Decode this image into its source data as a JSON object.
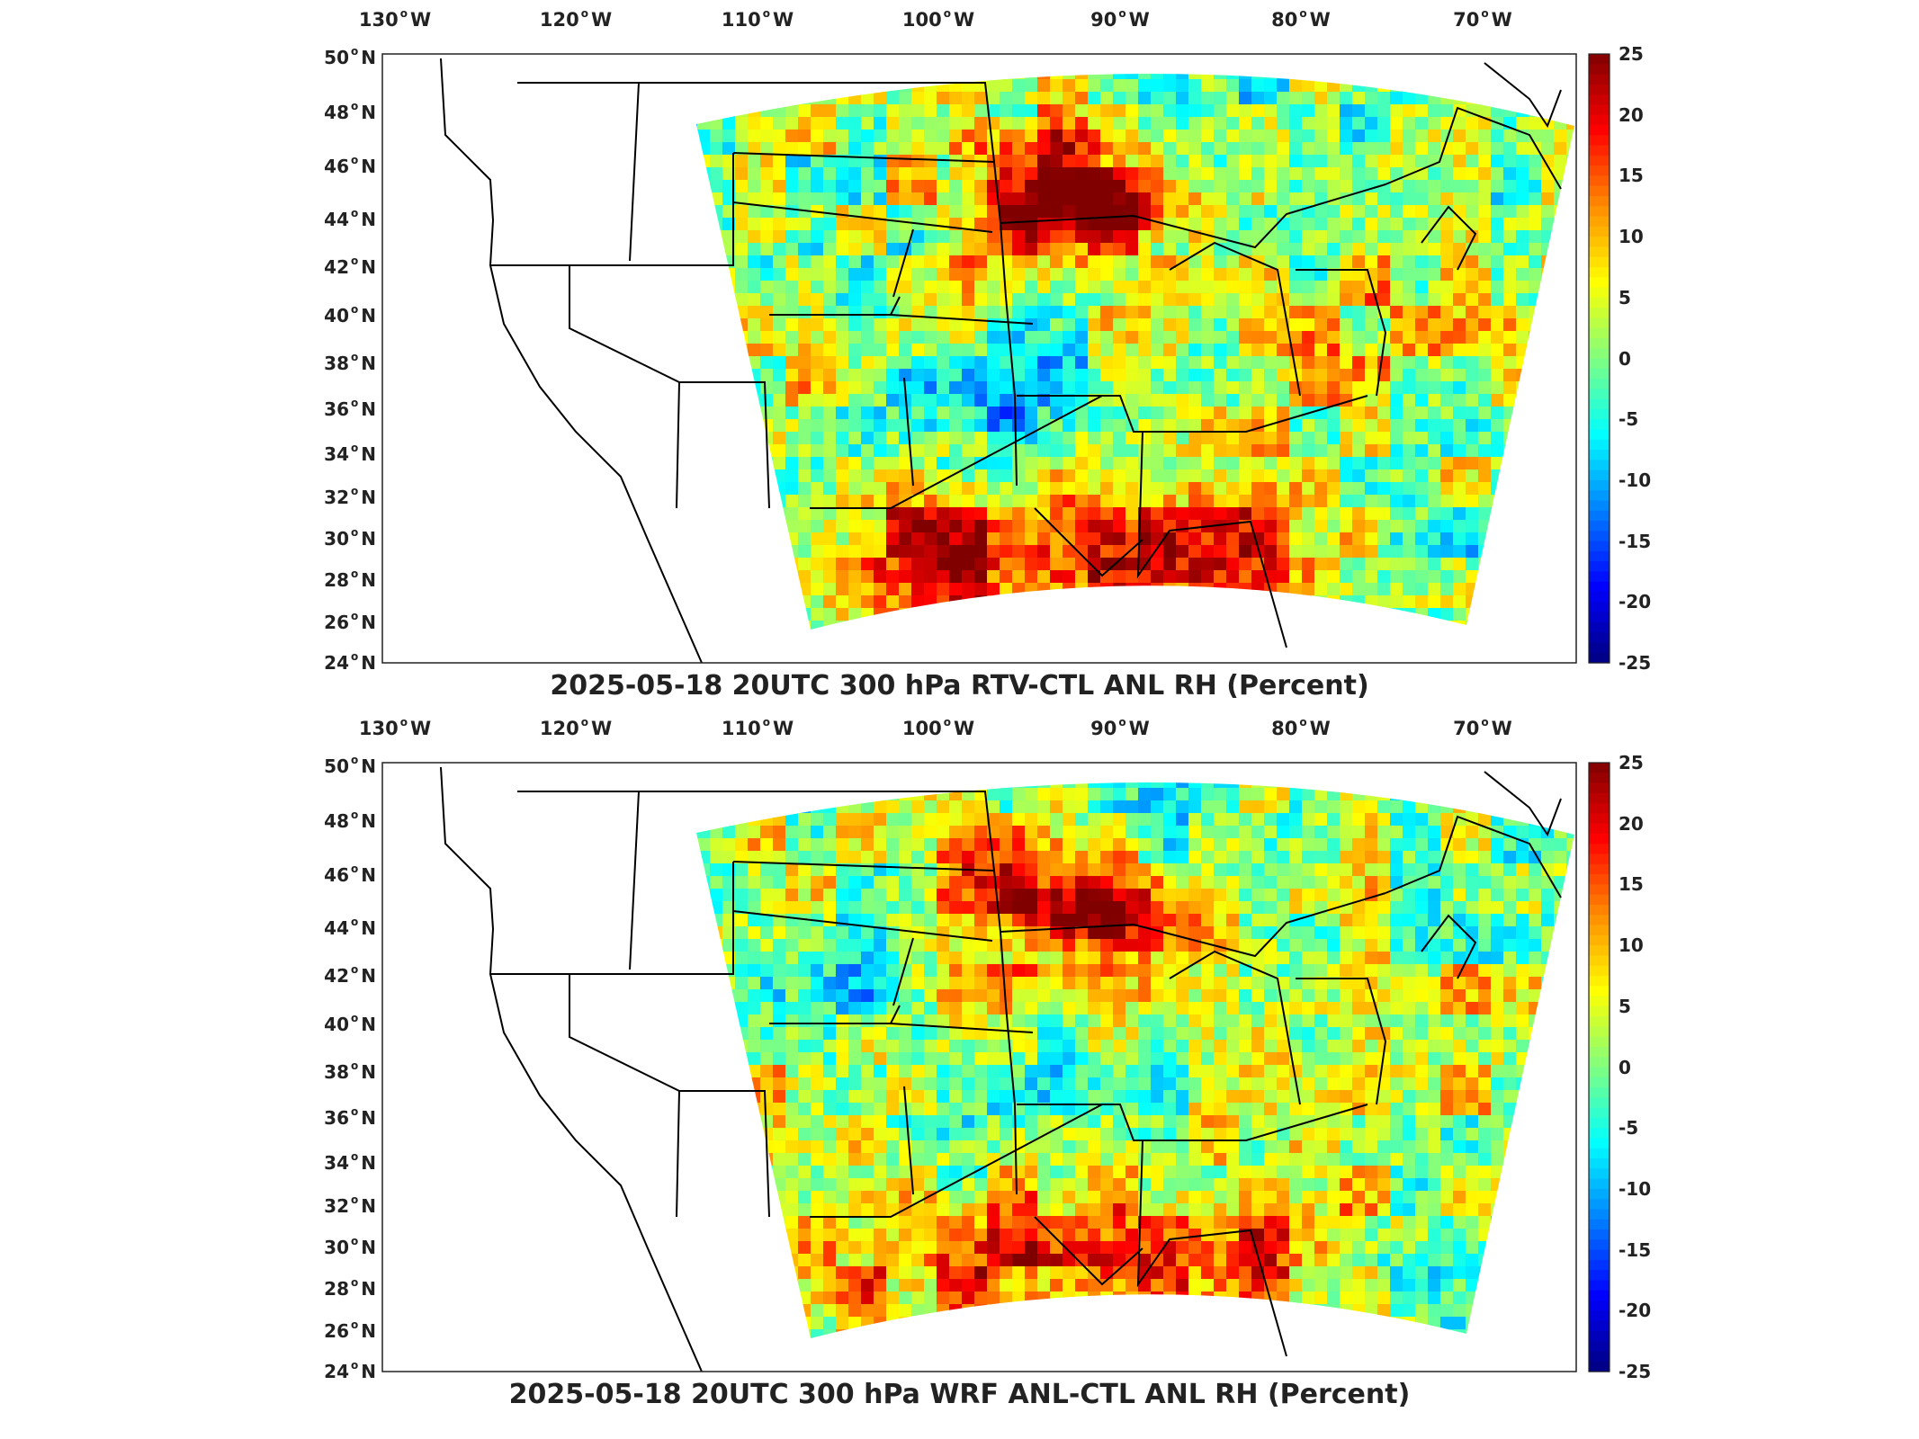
{
  "colorbar": {
    "ticks": [
      "25",
      "20",
      "15",
      "10",
      "5",
      "0",
      "-5",
      "-10",
      "-15",
      "-20",
      "-25"
    ],
    "colors": [
      "#800000",
      "#ff0000",
      "#ff8c00",
      "#ffff00",
      "#80ff80",
      "#00ffff",
      "#0080ff",
      "#0000ff",
      "#000080"
    ],
    "range": [
      -25,
      25
    ]
  },
  "axes": {
    "lon_labels": [
      {
        "value": "130",
        "hem": "W"
      },
      {
        "value": "120",
        "hem": "W"
      },
      {
        "value": "110",
        "hem": "W"
      },
      {
        "value": "100",
        "hem": "W"
      },
      {
        "value": "90",
        "hem": "W"
      },
      {
        "value": "80",
        "hem": "W"
      },
      {
        "value": "70",
        "hem": "W"
      }
    ],
    "lat_labels": [
      {
        "value": "50",
        "hem": "N"
      },
      {
        "value": "48",
        "hem": "N"
      },
      {
        "value": "46",
        "hem": "N"
      },
      {
        "value": "44",
        "hem": "N"
      },
      {
        "value": "42",
        "hem": "N"
      },
      {
        "value": "40",
        "hem": "N"
      },
      {
        "value": "38",
        "hem": "N"
      },
      {
        "value": "36",
        "hem": "N"
      },
      {
        "value": "34",
        "hem": "N"
      },
      {
        "value": "32",
        "hem": "N"
      },
      {
        "value": "30",
        "hem": "N"
      },
      {
        "value": "28",
        "hem": "N"
      },
      {
        "value": "26",
        "hem": "N"
      },
      {
        "value": "24",
        "hem": "N"
      }
    ]
  },
  "panels": [
    {
      "title": "2025-05-18 20UTC 300 hPa RTV-CTL ANL RH (Percent)"
    },
    {
      "title": "2025-05-18 20UTC 300 hPa WRF ANL-CTL ANL RH (Percent)"
    }
  ]
}
